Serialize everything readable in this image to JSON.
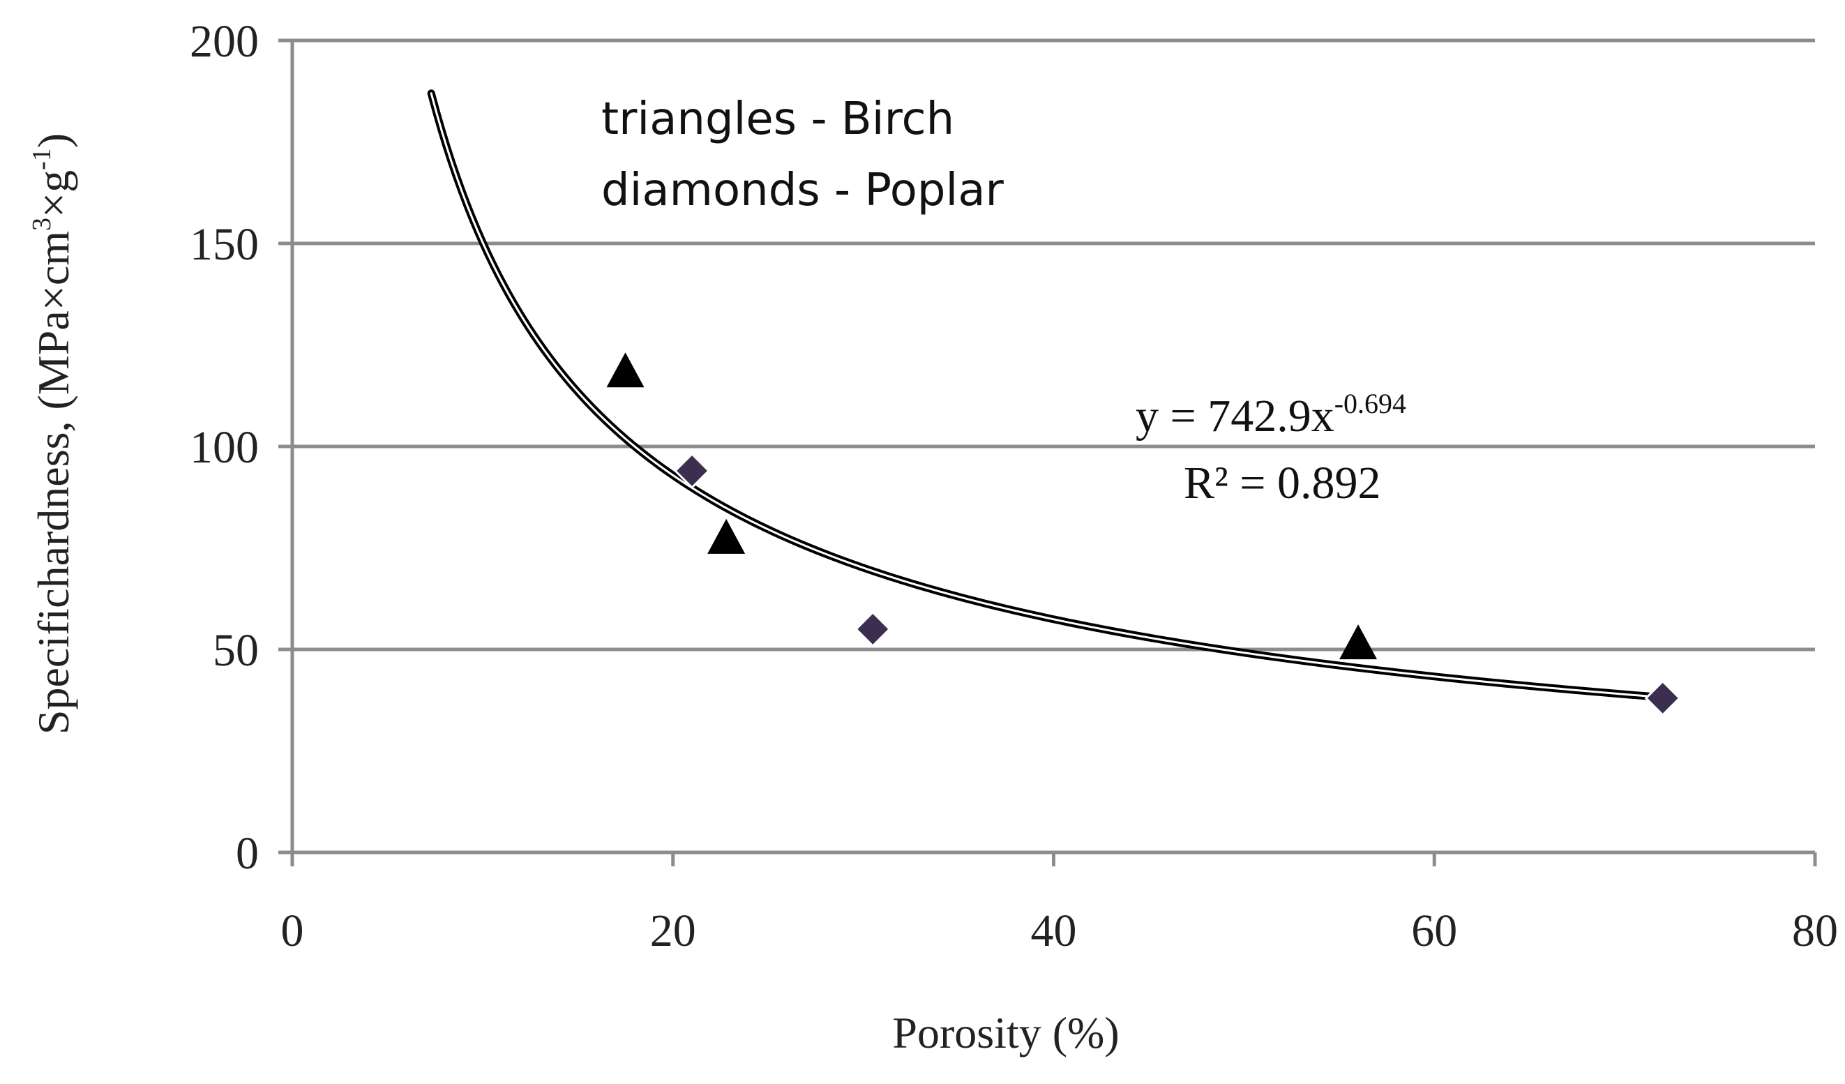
{
  "chart_data": {
    "type": "scatter",
    "title": "",
    "xlabel": "Porosity (%)",
    "ylabel": {
      "main": "Specifichardness, (MPa×cm",
      "sup1": "3",
      "mid": "×g",
      "sup2": "-1",
      "end": ")"
    },
    "xlim": [
      0,
      80
    ],
    "ylim": [
      0,
      200
    ],
    "xticks": [
      0,
      20,
      40,
      60,
      80
    ],
    "yticks": [
      0,
      50,
      100,
      150,
      200
    ],
    "grid": "horizontal",
    "annotations": {
      "legend_line1": "triangles - Birch",
      "legend_line2": "diamonds - Poplar",
      "equation_base": "y = 742.9x",
      "equation_exp": "-0.694",
      "r_squared": "R² = 0.892"
    },
    "series": [
      {
        "marker": "triangle",
        "color": "#000000",
        "points": [
          {
            "x": 17.5,
            "y": 118
          },
          {
            "x": 22.8,
            "y": 77
          },
          {
            "x": 56,
            "y": 51
          }
        ]
      },
      {
        "marker": "diamond",
        "color": "#3b2e4e",
        "points": [
          {
            "x": 21,
            "y": 94
          },
          {
            "x": 30.5,
            "y": 55
          },
          {
            "x": 72,
            "y": 38
          }
        ]
      }
    ],
    "trendline": {
      "type": "power",
      "a": 742.9,
      "b": -0.694,
      "x_start": 7.3,
      "x_end": 72,
      "color": "#000000"
    }
  }
}
